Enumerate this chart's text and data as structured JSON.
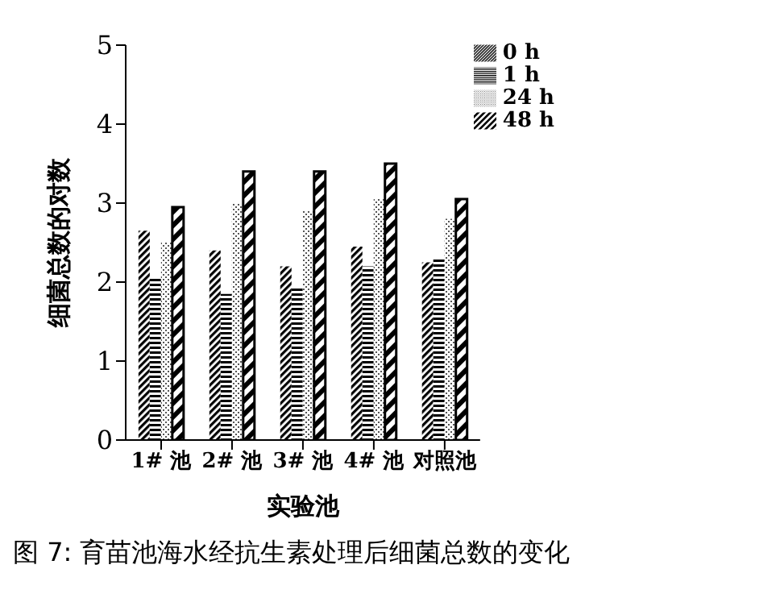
{
  "chart_data": {
    "type": "bar",
    "title": "图 7:  育苗池海水经抗生素处理后细菌总数的变化",
    "xlabel": "实验池",
    "ylabel": "细菌总数的对数",
    "categories": [
      "1# 池",
      "2# 池",
      "3# 池",
      "4# 池",
      "对照池"
    ],
    "series": [
      {
        "name": "0 h",
        "color": "#000000",
        "values": [
          2.65,
          2.4,
          2.2,
          2.45,
          2.25
        ]
      },
      {
        "name": "1 h",
        "color": "#000000",
        "values": [
          2.05,
          1.85,
          1.95,
          2.2,
          2.3
        ]
      },
      {
        "name": "24 h",
        "color": "#555555",
        "values": [
          2.5,
          3.0,
          2.9,
          3.05,
          2.8
        ]
      },
      {
        "name": "48 h",
        "color": "#000000",
        "values": [
          2.95,
          3.4,
          3.4,
          3.5,
          3.05
        ]
      }
    ],
    "ylim": [
      0,
      5
    ],
    "yticks": [
      0,
      1,
      2,
      3,
      4,
      5
    ],
    "grid": false,
    "legend": "top right"
  }
}
